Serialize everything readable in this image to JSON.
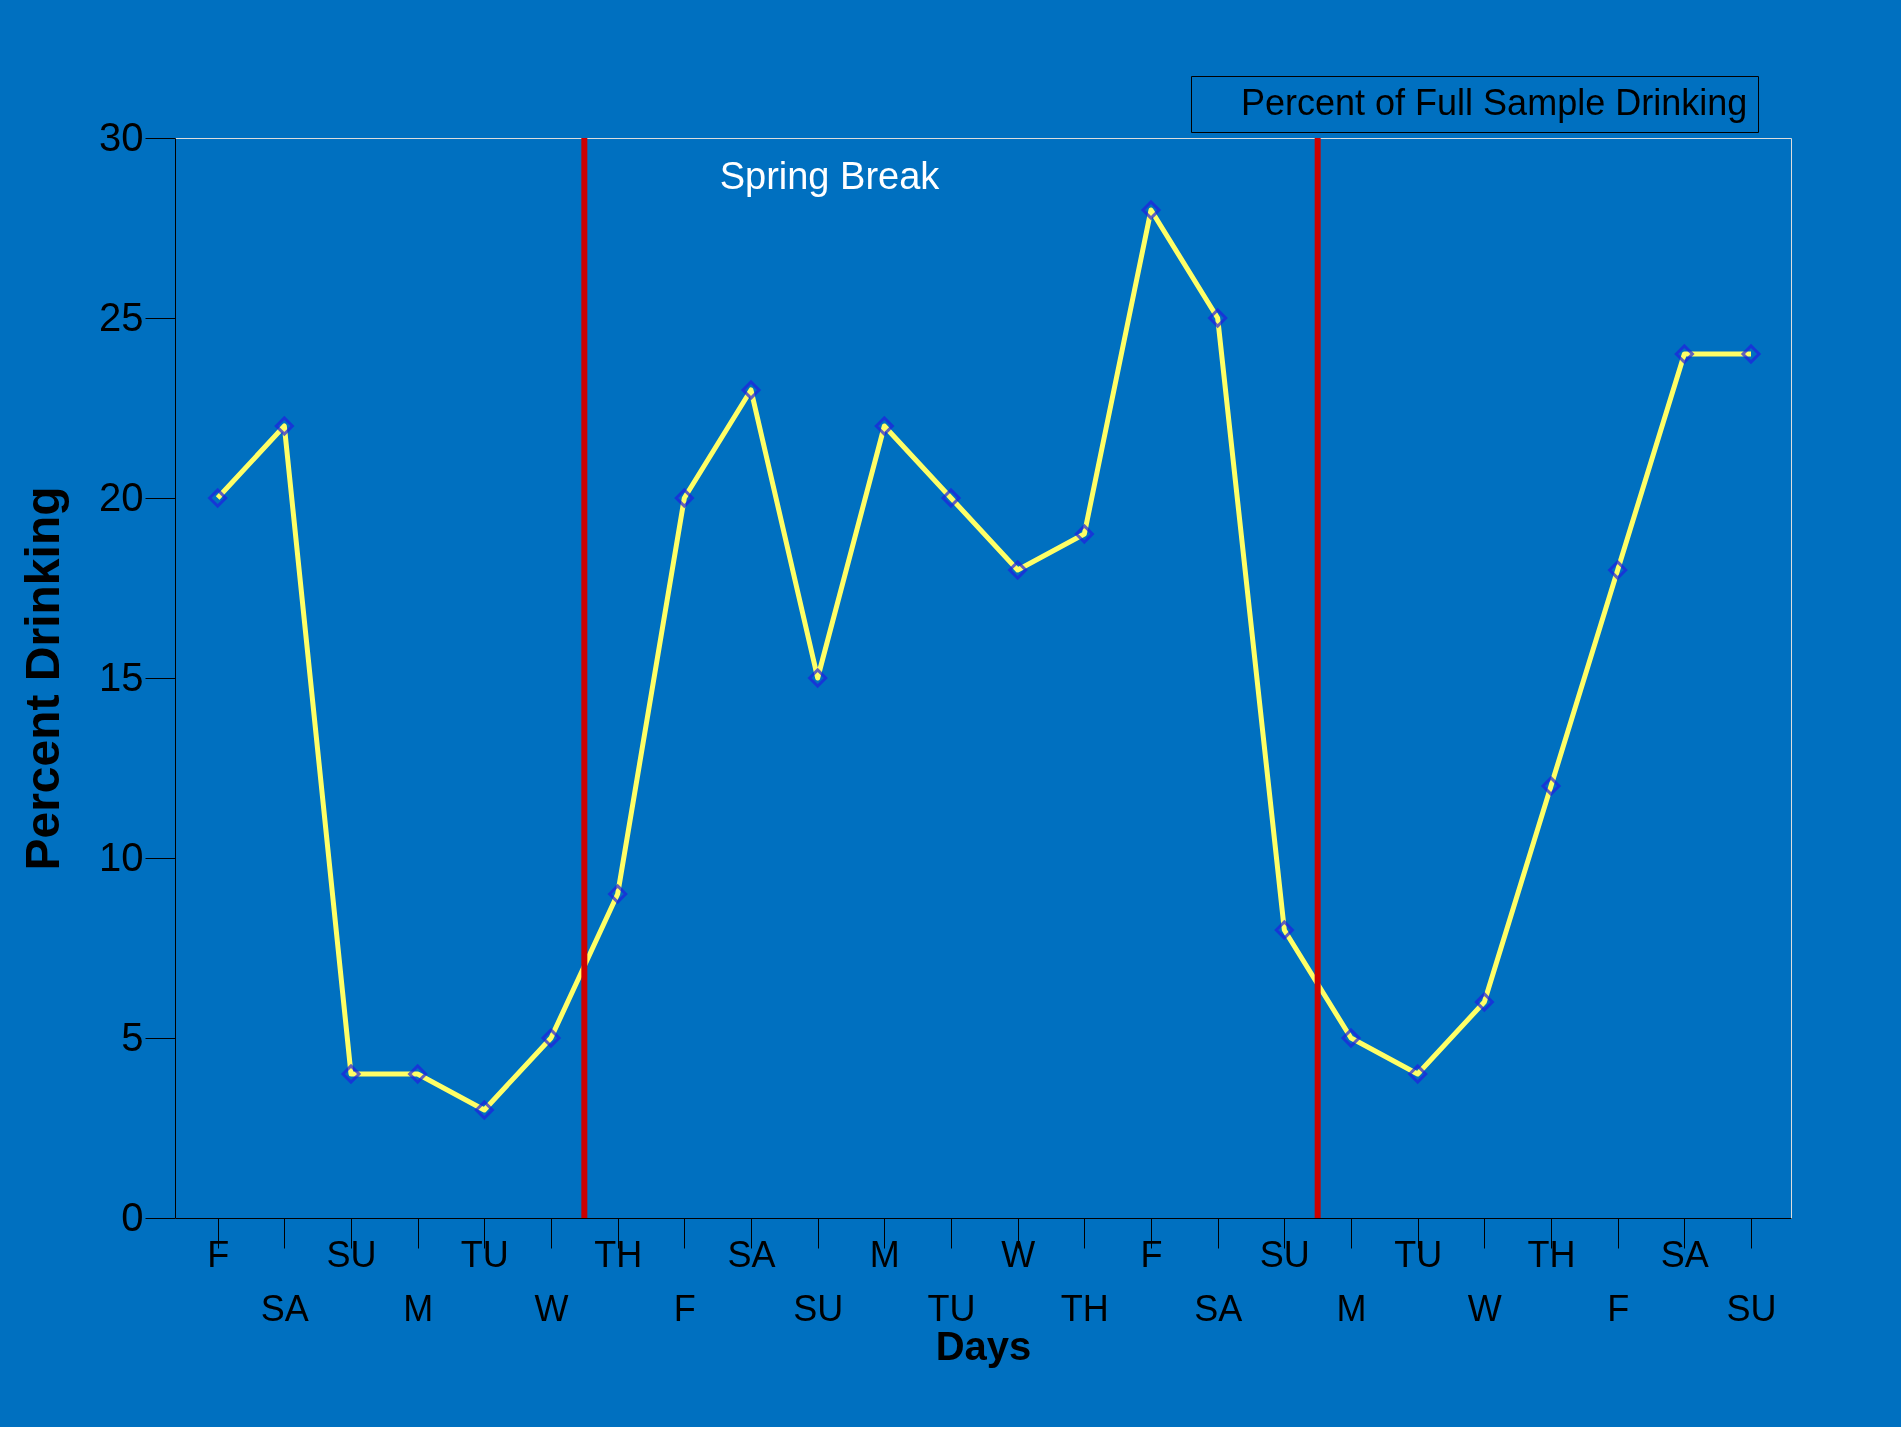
{
  "chart_data": {
    "type": "line",
    "categories": [
      "F",
      "SA",
      "SU",
      "M",
      "TU",
      "W",
      "TH",
      "F",
      "SA",
      "SU",
      "M",
      "TU",
      "W",
      "TH",
      "F",
      "SA",
      "SU",
      "M",
      "TU",
      "W",
      "TH",
      "F",
      "SA",
      "SU"
    ],
    "ylim": [
      0,
      30
    ],
    "yticks": [
      0,
      5,
      10,
      15,
      20,
      25,
      30
    ],
    "xlabel": "Days",
    "ylabel": "Percent Drinking",
    "series": [
      {
        "name": "Percent of Full Sample Drinking",
        "color": "#ffff66",
        "values": [
          20,
          22,
          4,
          4,
          3,
          5,
          9,
          20,
          23,
          15,
          22,
          20,
          18,
          19,
          28,
          25,
          8,
          5,
          4,
          6,
          12,
          18,
          24,
          24
        ]
      }
    ],
    "marker": "diamond",
    "line_style": "solid",
    "grid": false,
    "legend": "top right",
    "annotations": [
      "Spring Break"
    ]
  }
}
